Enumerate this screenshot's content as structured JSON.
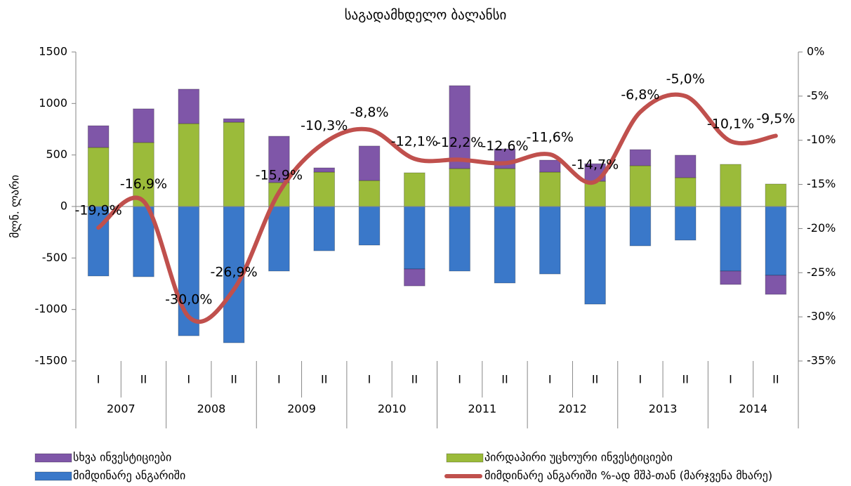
{
  "chart_data": {
    "type": "bar-line",
    "title": "საგადამხდელო ბალანსი",
    "y_label": "მლნ. ლარი",
    "categories": [
      "I",
      "II",
      "I",
      "II",
      "I",
      "II",
      "I",
      "II",
      "I",
      "II",
      "I",
      "II",
      "I",
      "II",
      "I",
      "II"
    ],
    "category_groups": [
      "2007",
      "2008",
      "2009",
      "2010",
      "2011",
      "2012",
      "2013",
      "2014"
    ],
    "ylim": [
      -1500,
      1500
    ],
    "yticks": [
      -1500,
      -1000,
      -500,
      0,
      500,
      1000,
      1500
    ],
    "y2lim": [
      -35,
      0
    ],
    "y2ticks": [
      {
        "value": -35,
        "label": "-35%"
      },
      {
        "value": -30,
        "label": "-30%"
      },
      {
        "value": -25,
        "label": "-25%"
      },
      {
        "value": -20,
        "label": "-20%"
      },
      {
        "value": -15,
        "label": "-15%"
      },
      {
        "value": -10,
        "label": "-10%"
      },
      {
        "value": -5,
        "label": "-5%"
      },
      {
        "value": 0,
        "label": "0%"
      }
    ],
    "series": [
      {
        "name": "მიმდინარე ანგარიში",
        "color": "#3a78c9",
        "type": "bar",
        "values": [
          -675,
          -682,
          -1255,
          -1323,
          -627,
          -430,
          -375,
          -607,
          -627,
          -743,
          -655,
          -948,
          -382,
          -327,
          -627,
          -668
        ]
      },
      {
        "name": "პირდაპირი უცხოური ინვესტიციები",
        "color": "#9bbb3a",
        "type": "bar",
        "values": [
          573,
          621,
          805,
          818,
          232,
          334,
          252,
          327,
          368,
          368,
          334,
          245,
          396,
          280,
          409,
          218
        ]
      },
      {
        "name": "სხვა ინვესტიციები",
        "color": "#7f56a8",
        "type": "bar",
        "values": [
          211,
          327,
          334,
          34,
          450,
          41,
          335,
          -164,
          805,
          191,
          116,
          170,
          156,
          218,
          -130,
          -185
        ]
      },
      {
        "name": "მიმდინარე ანგარიში %-ად მშპ-თან (მარჯვენა მხარე)",
        "color": "#c0504d",
        "type": "line",
        "axis": "y2",
        "values": [
          -19.9,
          -16.9,
          -30.0,
          -26.9,
          -15.9,
          -10.3,
          -8.8,
          -12.1,
          -12.2,
          -12.6,
          -11.6,
          -14.7,
          -6.8,
          -5.0,
          -10.1,
          -9.5
        ],
        "value_labels": [
          "-19,9%",
          "-16,9%",
          "-30,0%",
          "-26,9%",
          "-15,9%",
          "-10,3%",
          "-8,8%",
          "-12,1%",
          "-12,2%",
          "-12,6%",
          "-11,6%",
          "-14,7%",
          "-6,8%",
          "-5,0%",
          "-10,1%",
          "-9,5%"
        ]
      }
    ]
  }
}
